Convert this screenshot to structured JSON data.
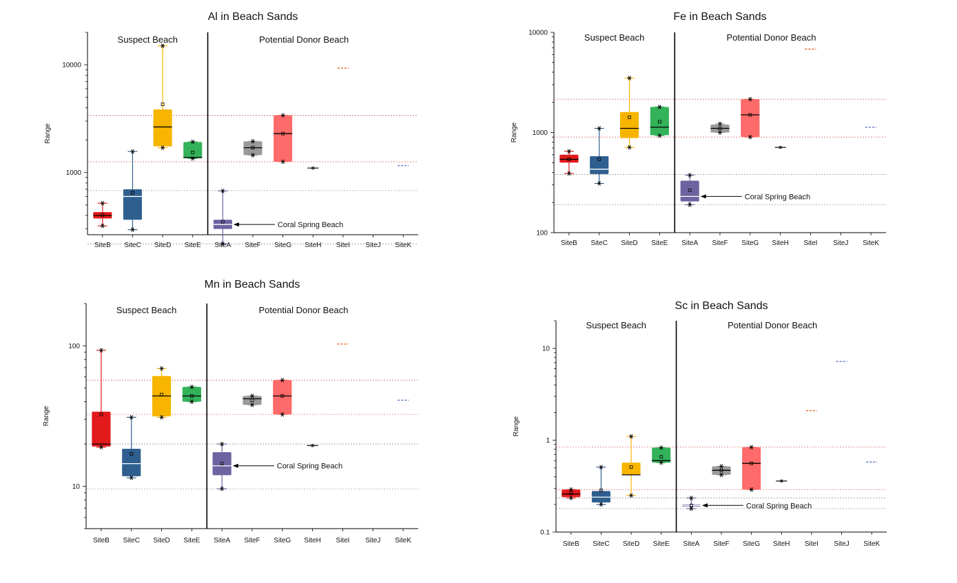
{
  "colors": {
    "SiteB": "#e31a1c",
    "SiteC": "#2f5f8f",
    "SiteD": "#f7b500",
    "SiteE": "#33b25a",
    "SiteA": "#6d63a0",
    "SiteF": "#9a9a9a",
    "SiteG": "#ff6a6a",
    "SiteH": "#222222",
    "SiteI": "#e8641c",
    "SiteJ": "#5a6fc0",
    "SiteK": "#5a6fc0",
    "ref_line": "#e05a5a",
    "ref_line_dark": "#888888"
  },
  "chart_data": [
    {
      "type": "box",
      "title": "Al in Beach Sands",
      "ylabel": "Range",
      "yscale": "log",
      "ylim": [
        265,
        20000
      ],
      "yticks": [
        1000,
        10000
      ],
      "yticklabels": [
        "1000",
        "10000"
      ],
      "categories": [
        "SiteB",
        "SiteC",
        "SiteD",
        "SiteE",
        "SiteA",
        "SiteF",
        "SiteG",
        "SiteH",
        "SiteI",
        "SiteJ",
        "SiteK"
      ],
      "group_labels": [
        "Suspect Beach",
        "Potential Donor Beach"
      ],
      "annotation": "Coral Spring Beach",
      "annotation_site": "SiteA",
      "ref_lines": [
        3400,
        1260,
        680,
        218
      ],
      "boxes": [
        {
          "site": "SiteB",
          "min": 320,
          "q1": 375,
          "median": 400,
          "q3": 430,
          "max": 520,
          "mean": 405
        },
        {
          "site": "SiteC",
          "min": 295,
          "q1": 365,
          "median": 600,
          "q3": 700,
          "max": 1570,
          "mean": 650
        },
        {
          "site": "SiteD",
          "min": 1700,
          "q1": 1750,
          "median": 2650,
          "q3": 3850,
          "max": 15000,
          "mean": 4300
        },
        {
          "site": "SiteE",
          "min": 1350,
          "q1": 1360,
          "median": 1380,
          "q3": 1920,
          "max": 1930,
          "mean": 1540
        },
        {
          "site": "SiteA",
          "min": 218,
          "q1": 300,
          "median": 330,
          "q3": 365,
          "max": 675,
          "mean": 350
        },
        {
          "site": "SiteF",
          "min": 1450,
          "q1": 1450,
          "median": 1700,
          "q3": 1950,
          "max": 1950,
          "mean": 1700
        },
        {
          "site": "SiteG",
          "min": 1260,
          "q1": 1260,
          "median": 2300,
          "q3": 3400,
          "max": 3400,
          "mean": 2300
        },
        {
          "site": "SiteH",
          "single": 1100
        },
        {
          "site": "SiteI",
          "single": 9300
        },
        {
          "site": "SiteK",
          "single": 1160
        }
      ]
    },
    {
      "type": "box",
      "title": "Fe in Beach Sands",
      "ylabel": "Range",
      "yscale": "log",
      "ylim": [
        100,
        10000
      ],
      "yticks": [
        100,
        1000,
        10000
      ],
      "yticklabels": [
        "100",
        "1000",
        "10000"
      ],
      "categories": [
        "SiteB",
        "SiteC",
        "SiteD",
        "SiteE",
        "SiteA",
        "SiteF",
        "SiteG",
        "SiteH",
        "SiteI",
        "SiteJ",
        "SiteK"
      ],
      "group_labels": [
        "Suspect Beach",
        "Potential Donor Beach"
      ],
      "annotation": "Coral Spring Beach",
      "annotation_site": "SiteA",
      "ref_lines": [
        2150,
        900,
        380,
        190
      ],
      "boxes": [
        {
          "site": "SiteB",
          "min": 390,
          "q1": 500,
          "median": 540,
          "q3": 600,
          "max": 650,
          "mean": 540
        },
        {
          "site": "SiteC",
          "min": 310,
          "q1": 385,
          "median": 430,
          "q3": 580,
          "max": 1100,
          "mean": 540
        },
        {
          "site": "SiteD",
          "min": 710,
          "q1": 880,
          "median": 1100,
          "q3": 1600,
          "max": 3500,
          "mean": 1420
        },
        {
          "site": "SiteE",
          "min": 930,
          "q1": 940,
          "median": 1130,
          "q3": 1800,
          "max": 1800,
          "mean": 1280
        },
        {
          "site": "SiteA",
          "min": 190,
          "q1": 205,
          "median": 230,
          "q3": 330,
          "max": 375,
          "mean": 265
        },
        {
          "site": "SiteF",
          "min": 1000,
          "q1": 1000,
          "median": 1100,
          "q3": 1200,
          "max": 1220,
          "mean": 1100
        },
        {
          "site": "SiteG",
          "min": 900,
          "q1": 900,
          "median": 1500,
          "q3": 2150,
          "max": 2150,
          "mean": 1500
        },
        {
          "site": "SiteH",
          "single": 710
        },
        {
          "site": "SiteI",
          "single": 6800
        },
        {
          "site": "SiteK",
          "single": 1130
        }
      ]
    },
    {
      "type": "box",
      "title": "Mn in Beach Sands",
      "ylabel": "Range",
      "yscale": "log",
      "ylim": [
        5,
        200
      ],
      "yticks": [
        10,
        100
      ],
      "yticklabels": [
        "10",
        "100"
      ],
      "categories": [
        "SiteB",
        "SiteC",
        "SiteD",
        "SiteE",
        "SiteA",
        "SiteF",
        "SiteG",
        "SiteH",
        "SiteI",
        "SiteJ",
        "SiteK"
      ],
      "group_labels": [
        "Suspect Beach",
        "Potential Donor Beach"
      ],
      "annotation": "Coral Spring Beach",
      "annotation_site": "SiteA",
      "ref_lines": [
        57,
        32.5,
        20,
        9.6
      ],
      "boxes": [
        {
          "site": "SiteB",
          "min": 19,
          "q1": 19.2,
          "median": 20,
          "q3": 34,
          "max": 93,
          "mean": 32.5
        },
        {
          "site": "SiteC",
          "min": 11.5,
          "q1": 11.8,
          "median": 14.5,
          "q3": 18.5,
          "max": 31,
          "mean": 17
        },
        {
          "site": "SiteD",
          "min": 31,
          "q1": 31.5,
          "median": 44,
          "q3": 61,
          "max": 69,
          "mean": 45
        },
        {
          "site": "SiteE",
          "min": 40,
          "q1": 40,
          "median": 44,
          "q3": 51,
          "max": 51,
          "mean": 44
        },
        {
          "site": "SiteA",
          "min": 9.6,
          "q1": 12,
          "median": 14,
          "q3": 17.5,
          "max": 20,
          "mean": 14.5
        },
        {
          "site": "SiteF",
          "min": 38,
          "q1": 38,
          "median": 42,
          "q3": 44,
          "max": 44,
          "mean": 41
        },
        {
          "site": "SiteG",
          "min": 32.5,
          "q1": 32.5,
          "median": 44,
          "q3": 57,
          "max": 57,
          "mean": 44
        },
        {
          "site": "SiteH",
          "single": 19.5
        },
        {
          "site": "SiteI",
          "single": 103
        },
        {
          "site": "SiteK",
          "single": 41
        }
      ]
    },
    {
      "type": "box",
      "title": "Sc in Beach Sands",
      "ylabel": "Range",
      "yscale": "log",
      "ylim": [
        0.1,
        20
      ],
      "yticks": [
        0.1,
        1,
        10
      ],
      "yticklabels": [
        "0.1",
        "1",
        "10"
      ],
      "categories": [
        "SiteB",
        "SiteC",
        "SiteD",
        "SiteE",
        "SiteA",
        "SiteF",
        "SiteG",
        "SiteH",
        "SiteI",
        "SiteJ",
        "SiteK"
      ],
      "group_labels": [
        "Suspect Beach",
        "Potential Donor Beach"
      ],
      "annotation": "Coral Spring Beach",
      "annotation_site": "SiteA",
      "ref_lines": [
        0.84,
        0.29,
        0.235,
        0.18
      ],
      "boxes": [
        {
          "site": "SiteB",
          "min": 0.235,
          "q1": 0.24,
          "median": 0.26,
          "q3": 0.29,
          "max": 0.29,
          "mean": 0.265
        },
        {
          "site": "SiteC",
          "min": 0.2,
          "q1": 0.21,
          "median": 0.24,
          "q3": 0.28,
          "max": 0.51,
          "mean": 0.285
        },
        {
          "site": "SiteD",
          "min": 0.25,
          "q1": 0.42,
          "median": 0.42,
          "q3": 0.57,
          "max": 1.1,
          "mean": 0.51
        },
        {
          "site": "SiteE",
          "min": 0.57,
          "q1": 0.57,
          "median": 0.6,
          "q3": 0.83,
          "max": 0.83,
          "mean": 0.66
        },
        {
          "site": "SiteA",
          "min": 0.18,
          "q1": 0.19,
          "median": 0.195,
          "q3": 0.2,
          "max": 0.235,
          "mean": 0.195
        },
        {
          "site": "SiteF",
          "min": 0.42,
          "q1": 0.42,
          "median": 0.47,
          "q3": 0.52,
          "max": 0.52,
          "mean": 0.47
        },
        {
          "site": "SiteG",
          "min": 0.29,
          "q1": 0.29,
          "median": 0.56,
          "q3": 0.84,
          "max": 0.84,
          "mean": 0.56
        },
        {
          "site": "SiteH",
          "single": 0.36
        },
        {
          "site": "SiteI",
          "single": 2.1
        },
        {
          "site": "SiteJ",
          "single": 7.2
        },
        {
          "site": "SiteK",
          "single": 0.58
        }
      ]
    }
  ]
}
